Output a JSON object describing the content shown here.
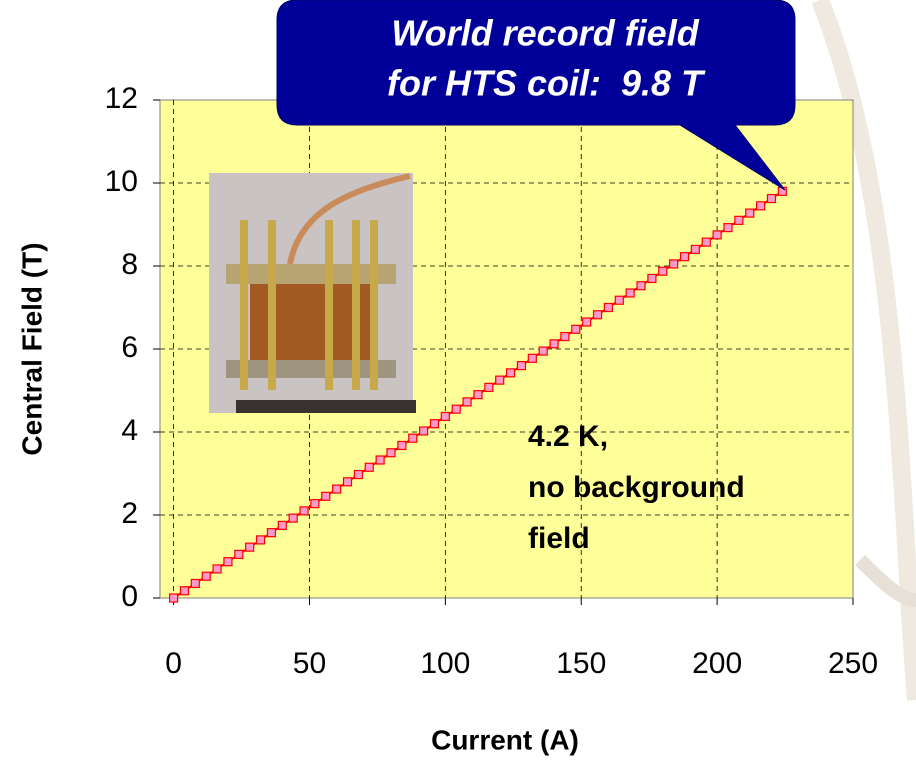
{
  "chart_data": {
    "type": "scatter",
    "x_label": "Current (A)",
    "y_label": "Central Field (T)",
    "callout": [
      "World record field",
      "for HTS coil:  9.8 T"
    ],
    "note": [
      "4.2 K,",
      "no background",
      "field"
    ],
    "x": [
      0,
      4,
      8,
      12,
      16,
      20,
      24,
      28,
      32,
      36,
      40,
      44,
      48,
      52,
      56,
      60,
      64,
      68,
      72,
      76,
      80,
      84,
      88,
      92,
      96,
      100,
      104,
      108,
      112,
      116,
      120,
      124,
      128,
      132,
      136,
      140,
      144,
      148,
      152,
      156,
      160,
      164,
      168,
      172,
      176,
      180,
      184,
      188,
      192,
      196,
      200,
      204,
      208,
      212,
      216,
      220,
      224
    ],
    "values": [
      0,
      0.175,
      0.35,
      0.525,
      0.7,
      0.875,
      1.05,
      1.225,
      1.4,
      1.575,
      1.75,
      1.925,
      2.1,
      2.275,
      2.45,
      2.625,
      2.8,
      2.975,
      3.15,
      3.325,
      3.5,
      3.675,
      3.85,
      4.025,
      4.2,
      4.375,
      4.55,
      4.725,
      4.9,
      5.075,
      5.25,
      5.425,
      5.6,
      5.775,
      5.95,
      6.125,
      6.3,
      6.475,
      6.65,
      6.825,
      7,
      7.175,
      7.35,
      7.525,
      7.7,
      7.875,
      8.05,
      8.225,
      8.4,
      8.575,
      8.75,
      8.925,
      9.1,
      9.275,
      9.45,
      9.625,
      9.8
    ],
    "color": "#ff0000",
    "marker_fill": "#ff99cc",
    "plot_background": "#ffff99",
    "xlim": [
      -5,
      250
    ],
    "ylim": [
      0,
      12
    ],
    "xticks": [
      0,
      50,
      100,
      150,
      200,
      250
    ],
    "yticks": [
      0,
      2,
      4,
      6,
      8,
      10,
      12
    ],
    "grid": true
  }
}
